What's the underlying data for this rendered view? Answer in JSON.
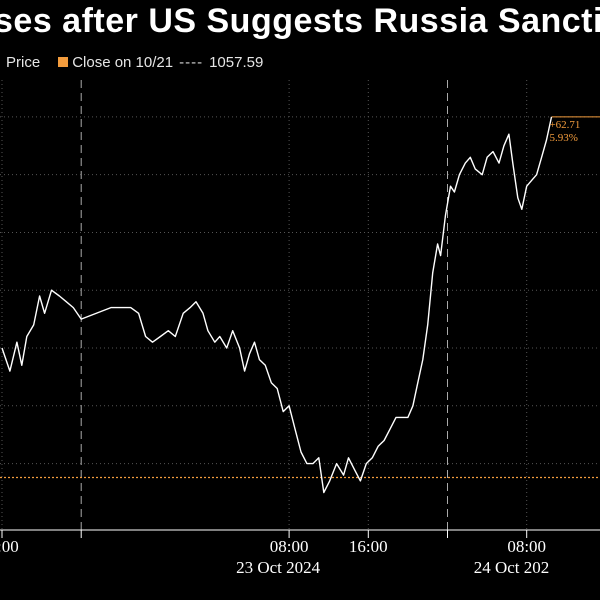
{
  "title": "ses after US Suggests Russia Sanctio",
  "legend": {
    "price_label": "Price",
    "close_label": "Close on 10/21",
    "close_dash": "----",
    "close_value": "1057.59"
  },
  "colors": {
    "background": "#000000",
    "line": "#ffffff",
    "close": "#f39c3d",
    "grid": "#555555"
  },
  "chart_data": {
    "type": "line",
    "title": "",
    "xlabel": "",
    "ylabel": "",
    "reference_close": 1057.59,
    "change_label": "+62.71",
    "change_pct_label": "5.93%",
    "x_ticks": [
      {
        "t": 0,
        "label": ":00"
      },
      {
        "t": 29,
        "label": "08:00"
      },
      {
        "t": 37,
        "label": "16:00"
      },
      {
        "t": 53,
        "label": "08:00"
      }
    ],
    "date_labels": [
      {
        "t": 29,
        "label": "23 Oct 2024"
      },
      {
        "t": 53,
        "label": "24 Oct 202"
      }
    ],
    "day_separators": [
      8,
      45
    ],
    "xlim": [
      0,
      60
    ],
    "ylim": [
      1050,
      1125
    ],
    "series": [
      {
        "values": [
          [
            0,
            1080
          ],
          [
            0.8,
            1076
          ],
          [
            1.5,
            1081
          ],
          [
            2,
            1077
          ],
          [
            2.5,
            1082
          ],
          [
            3.2,
            1084
          ],
          [
            3.8,
            1089
          ],
          [
            4.3,
            1086
          ],
          [
            5,
            1090
          ],
          [
            5.8,
            1089
          ],
          [
            6.5,
            1088
          ],
          [
            7.2,
            1087
          ],
          [
            8,
            1085
          ],
          [
            11,
            1087
          ],
          [
            12,
            1087
          ],
          [
            13,
            1087
          ],
          [
            13.8,
            1086
          ],
          [
            14.5,
            1082
          ],
          [
            15.2,
            1081
          ],
          [
            16,
            1082
          ],
          [
            16.8,
            1083
          ],
          [
            17.5,
            1082
          ],
          [
            18.3,
            1086
          ],
          [
            19,
            1087
          ],
          [
            19.6,
            1088
          ],
          [
            20.3,
            1086
          ],
          [
            20.8,
            1083
          ],
          [
            21.5,
            1081
          ],
          [
            22,
            1082
          ],
          [
            22.7,
            1080
          ],
          [
            23.3,
            1083
          ],
          [
            24,
            1080
          ],
          [
            24.5,
            1076
          ],
          [
            25,
            1079
          ],
          [
            25.5,
            1081
          ],
          [
            26,
            1078
          ],
          [
            26.6,
            1077
          ],
          [
            27.2,
            1074
          ],
          [
            27.8,
            1073
          ],
          [
            28.4,
            1069
          ],
          [
            29,
            1070
          ],
          [
            29.6,
            1066
          ],
          [
            30.2,
            1062
          ],
          [
            30.8,
            1060
          ],
          [
            31.4,
            1060
          ],
          [
            32,
            1061
          ],
          [
            32.5,
            1055
          ],
          [
            33.1,
            1057
          ],
          [
            33.8,
            1060
          ],
          [
            34.5,
            1058
          ],
          [
            35,
            1061
          ],
          [
            35.6,
            1059
          ],
          [
            36.2,
            1057
          ],
          [
            36.8,
            1060
          ],
          [
            37.4,
            1061
          ],
          [
            38,
            1063
          ],
          [
            38.6,
            1064
          ],
          [
            39.2,
            1066
          ],
          [
            39.8,
            1068
          ],
          [
            40.5,
            1068
          ],
          [
            41,
            1068
          ],
          [
            41.5,
            1070
          ],
          [
            42,
            1074
          ],
          [
            42.5,
            1078
          ],
          [
            43,
            1084
          ],
          [
            43.5,
            1093
          ],
          [
            44,
            1098
          ],
          [
            44.3,
            1096
          ],
          [
            44.8,
            1103
          ],
          [
            45.3,
            1108
          ],
          [
            45.7,
            1107
          ],
          [
            46.2,
            1110
          ],
          [
            46.8,
            1112
          ],
          [
            47.3,
            1113
          ],
          [
            47.8,
            1111
          ],
          [
            48.5,
            1110
          ],
          [
            49,
            1113
          ],
          [
            49.6,
            1114
          ],
          [
            50.2,
            1112
          ],
          [
            50.7,
            1115
          ],
          [
            51.2,
            1117
          ],
          [
            51.6,
            1112
          ],
          [
            52.1,
            1106
          ],
          [
            52.5,
            1104
          ],
          [
            53,
            1108
          ],
          [
            53.5,
            1109
          ],
          [
            54,
            1110
          ],
          [
            54.5,
            1113
          ],
          [
            55,
            1116
          ],
          [
            55.5,
            1120
          ]
        ]
      }
    ]
  }
}
